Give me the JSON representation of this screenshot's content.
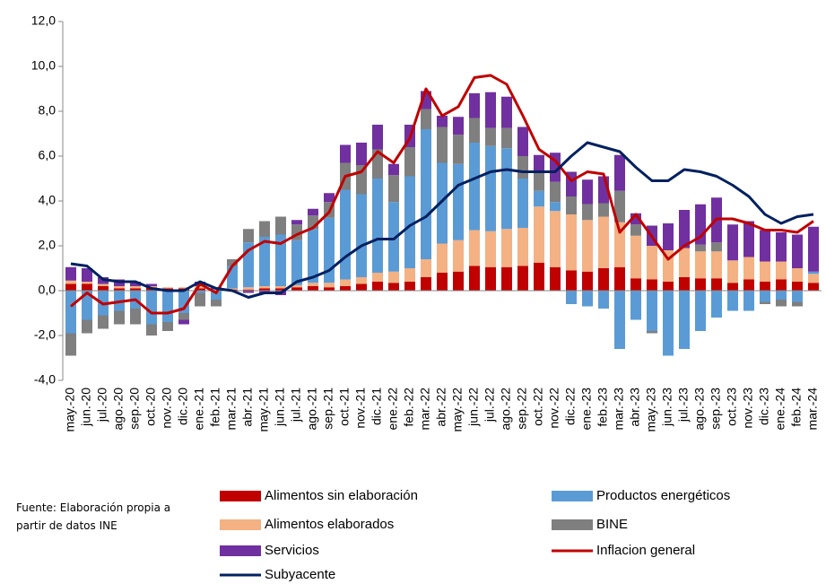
{
  "chart_data": {
    "type": "bar",
    "source": "Fuente: Elaboración propia a partir de datos INE",
    "categories": [
      "may.-20",
      "jun.-20",
      "jul.-20",
      "ago.-20",
      "sep.-20",
      "oct.-20",
      "nov.-20",
      "dic.-20",
      "ene.-21",
      "feb.-21",
      "mar.-21",
      "abr.-21",
      "may.-21",
      "jun.-21",
      "jul.-21",
      "ago.-21",
      "sep.-21",
      "oct.-21",
      "nov.-21",
      "dic.-21",
      "ene.-22",
      "feb.-22",
      "mar.-22",
      "abr.-22",
      "may.-22",
      "jun.-22",
      "jul.-22",
      "ago.-22",
      "sep.-22",
      "oct.-22",
      "nov.-22",
      "dic.-22",
      "ene.-23",
      "feb.-23",
      "mar.-23",
      "abr.-23",
      "may.-23",
      "jun.-23",
      "jul.-23",
      "ago.-23",
      "sep.-23",
      "oct.-23",
      "nov.-23",
      "dic.-23",
      "ene.-24",
      "feb.-24",
      "mar.-24"
    ],
    "ylim": [
      -4,
      12
    ],
    "yticks": [
      {
        "value": -4,
        "label": "-4,0"
      },
      {
        "value": -2,
        "label": "-2,0"
      },
      {
        "value": 0,
        "label": "0,0"
      },
      {
        "value": 2,
        "label": "2,0"
      },
      {
        "value": 4,
        "label": "4,0"
      },
      {
        "value": 6,
        "label": "6,0"
      },
      {
        "value": 8,
        "label": "8,0"
      },
      {
        "value": 10,
        "label": "10,0"
      },
      {
        "value": 12,
        "label": "12,0"
      }
    ],
    "series": [
      {
        "name": "Alimentos sin elaboración",
        "type": "bar",
        "color": "#c00000",
        "values": [
          0.3,
          0.3,
          0.2,
          0.1,
          0.1,
          0.15,
          0.1,
          0.1,
          0.1,
          0.0,
          0.05,
          0.05,
          0.1,
          0.1,
          0.15,
          0.2,
          0.15,
          0.2,
          0.3,
          0.4,
          0.35,
          0.4,
          0.6,
          0.8,
          0.85,
          1.1,
          1.05,
          1.05,
          1.1,
          1.25,
          1.05,
          0.9,
          0.85,
          1.0,
          1.05,
          0.55,
          0.5,
          0.4,
          0.6,
          0.55,
          0.55,
          0.35,
          0.5,
          0.4,
          0.5,
          0.4,
          0.35
        ]
      },
      {
        "name": "Alimentos elaborados",
        "type": "bar",
        "color": "#f4b183",
        "values": [
          0.15,
          0.1,
          0.1,
          0.1,
          0.1,
          0.05,
          0.05,
          0.05,
          0.1,
          0.05,
          0.05,
          0.1,
          0.1,
          0.1,
          0.1,
          0.15,
          0.2,
          0.3,
          0.3,
          0.4,
          0.5,
          0.6,
          0.8,
          1.3,
          1.4,
          1.6,
          1.6,
          1.7,
          1.7,
          2.5,
          2.5,
          2.5,
          2.3,
          2.3,
          2.0,
          1.9,
          1.5,
          1.4,
          1.3,
          1.2,
          1.2,
          1.0,
          1.0,
          0.9,
          0.8,
          0.6,
          0.4
        ]
      },
      {
        "name": "Productos energéticos",
        "type": "bar",
        "color": "#5b9bd5",
        "values": [
          -1.9,
          -1.3,
          -1.1,
          -0.9,
          -0.8,
          -1.5,
          -1.4,
          -1.0,
          -0.1,
          -0.4,
          1.0,
          2.0,
          2.2,
          2.3,
          2.0,
          2.4,
          2.9,
          4.0,
          3.7,
          4.2,
          3.1,
          4.1,
          5.8,
          3.6,
          3.4,
          3.9,
          3.8,
          3.6,
          2.2,
          0.7,
          0.4,
          -0.6,
          -0.7,
          -0.8,
          -2.6,
          -1.3,
          -1.8,
          -2.9,
          -2.6,
          -1.8,
          -1.2,
          -0.9,
          -0.9,
          -0.5,
          -0.4,
          -0.5,
          0.1
        ]
      },
      {
        "name": "BINE",
        "type": "bar",
        "color": "#7f7f7f",
        "values": [
          -1.0,
          -0.6,
          -0.6,
          -0.6,
          -0.7,
          -0.5,
          -0.4,
          -0.3,
          -0.6,
          -0.3,
          0.3,
          0.6,
          0.7,
          0.8,
          0.7,
          0.6,
          0.7,
          1.2,
          1.3,
          1.3,
          1.2,
          1.3,
          0.9,
          1.6,
          1.3,
          1.1,
          0.8,
          0.9,
          1.0,
          0.8,
          0.9,
          0.8,
          0.7,
          0.6,
          1.4,
          0.5,
          -0.1,
          0.0,
          0.0,
          0.3,
          0.4,
          0.0,
          0.0,
          -0.1,
          -0.3,
          -0.2,
          0.0
        ]
      },
      {
        "name": "Servicios",
        "type": "bar",
        "color": "#7030a0",
        "values": [
          0.6,
          0.6,
          0.3,
          0.3,
          0.2,
          0.1,
          0.0,
          -0.2,
          0.2,
          0.1,
          0.0,
          -0.1,
          -0.1,
          -0.2,
          0.2,
          0.3,
          0.4,
          0.8,
          1.0,
          1.1,
          0.5,
          1.0,
          0.8,
          0.5,
          0.8,
          1.1,
          1.6,
          1.4,
          1.3,
          0.8,
          1.3,
          1.1,
          1.1,
          1.2,
          1.6,
          0.5,
          0.9,
          1.2,
          1.7,
          1.8,
          2.0,
          1.6,
          1.6,
          1.4,
          1.3,
          1.5,
          2.0
        ]
      },
      {
        "name": "Inflacion general",
        "type": "line",
        "color": "#c00000",
        "values": [
          -0.7,
          -0.1,
          -0.6,
          -0.5,
          -0.4,
          -1.0,
          -1.0,
          -0.8,
          0.3,
          -0.1,
          1.1,
          1.8,
          2.2,
          2.1,
          2.5,
          2.8,
          3.5,
          5.1,
          5.3,
          6.2,
          5.7,
          6.8,
          9.0,
          7.8,
          8.2,
          9.5,
          9.6,
          9.2,
          7.8,
          6.3,
          5.8,
          4.9,
          5.3,
          5.2,
          2.6,
          3.4,
          2.4,
          1.4,
          2.0,
          2.4,
          3.2,
          3.2,
          3.0,
          2.7,
          2.7,
          2.6,
          3.1
        ]
      },
      {
        "name": "Subyacente",
        "type": "line",
        "color": "#002060",
        "values": [
          1.2,
          1.1,
          0.5,
          0.4,
          0.4,
          0.1,
          0.0,
          0.0,
          0.4,
          0.1,
          0.0,
          -0.3,
          -0.1,
          -0.1,
          0.4,
          0.6,
          0.9,
          1.5,
          2.0,
          2.3,
          2.3,
          2.9,
          3.3,
          4.0,
          4.7,
          5.0,
          5.3,
          5.4,
          5.3,
          5.3,
          5.3,
          6.0,
          6.6,
          6.4,
          6.2,
          5.5,
          4.9,
          4.9,
          5.4,
          5.3,
          5.1,
          4.7,
          4.2,
          3.4,
          3.0,
          3.3,
          3.4
        ]
      }
    ]
  }
}
